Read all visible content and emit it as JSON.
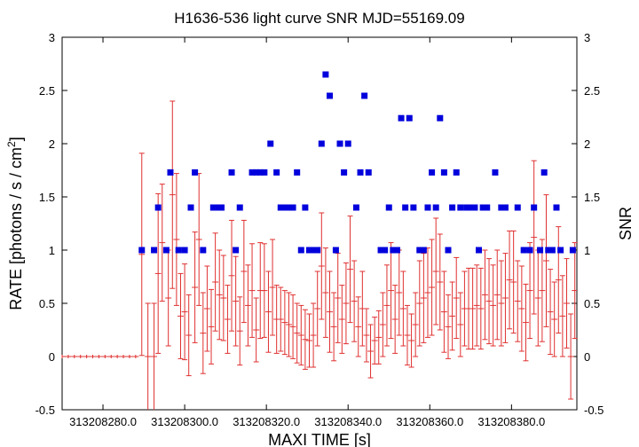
{
  "chart_data": {
    "type": "scatter",
    "title": "H1636-536 light curve  SNR MJD=55169.09",
    "xlabel": "MAXI TIME [s]",
    "ylabel_main": "RATE [photons / s / cm",
    "ylabel_sup": "2",
    "ylabel_close": "]",
    "y2label": "SNR",
    "xlim": [
      313208270.0,
      313208396.0
    ],
    "ylim": [
      -0.5,
      3.0
    ],
    "x_ticks": [
      313208280.0,
      313208300.0,
      313208320.0,
      313208340.0,
      313208360.0,
      313208380.0
    ],
    "x_tick_labels": [
      "313208280.0",
      "313208300.0",
      "313208320.0",
      "313208340.0",
      "313208360.0",
      "313208380.0"
    ],
    "y_ticks": [
      -0.5,
      0,
      0.5,
      1,
      1.5,
      2,
      2.5,
      3
    ],
    "y_tick_labels": [
      "-0.5",
      "0",
      "0.5",
      "1",
      "1.5",
      "2",
      "2.5",
      "3"
    ],
    "y2_tick_labels": [
      "-0.5",
      "0",
      "0.5",
      "1",
      "1.5",
      "2",
      "2.5",
      "3"
    ],
    "colors": {
      "rate": "#e03030",
      "snr": "#0000dd"
    },
    "series": [
      {
        "kind": "rate_with_errors",
        "points": [
          {
            "x": 313208270.0,
            "y": 0,
            "err": 0
          },
          {
            "x": 313208271.5,
            "y": 0,
            "err": 0
          },
          {
            "x": 313208273.0,
            "y": 0,
            "err": 0
          },
          {
            "x": 313208274.5,
            "y": 0,
            "err": 0
          },
          {
            "x": 313208276.0,
            "y": 0,
            "err": 0
          },
          {
            "x": 313208277.5,
            "y": 0,
            "err": 0
          },
          {
            "x": 313208279.0,
            "y": 0,
            "err": 0
          },
          {
            "x": 313208280.5,
            "y": 0,
            "err": 0
          },
          {
            "x": 313208282.0,
            "y": 0,
            "err": 0
          },
          {
            "x": 313208283.5,
            "y": 0,
            "err": 0
          },
          {
            "x": 313208285.0,
            "y": 0,
            "err": 0
          },
          {
            "x": 313208286.5,
            "y": 0,
            "err": 0
          },
          {
            "x": 313208288.0,
            "y": 0,
            "err": 0
          },
          {
            "x": 313208289.5,
            "y": 0.96,
            "err": 0.95
          },
          {
            "x": 313208291.0,
            "y": 0,
            "err": 0.5
          },
          {
            "x": 313208292.5,
            "y": 0,
            "err": 0.5
          },
          {
            "x": 313208293.5,
            "y": 0.78,
            "err": 0.75
          },
          {
            "x": 313208294.5,
            "y": 1.07,
            "err": 0.55
          },
          {
            "x": 313208296.0,
            "y": 0.55,
            "err": 0.45
          },
          {
            "x": 313208297.0,
            "y": 1.52,
            "err": 0.88
          },
          {
            "x": 313208298.0,
            "y": 1.1,
            "err": 0.62
          },
          {
            "x": 313208299.0,
            "y": 0.38,
            "err": 0.4
          },
          {
            "x": 313208300.0,
            "y": 0.42,
            "err": 0.45
          },
          {
            "x": 313208301.0,
            "y": 0.2,
            "err": 0.38
          },
          {
            "x": 313208302.5,
            "y": 0.65,
            "err": 0.52
          },
          {
            "x": 313208303.5,
            "y": 1.1,
            "err": 0.62
          },
          {
            "x": 313208304.5,
            "y": 0.22,
            "err": 0.38
          },
          {
            "x": 313208305.5,
            "y": 0.45,
            "err": 0.4
          },
          {
            "x": 313208306.5,
            "y": 0.28,
            "err": 0.35
          },
          {
            "x": 313208307.5,
            "y": 0.7,
            "err": 0.46
          },
          {
            "x": 313208308.5,
            "y": 0.58,
            "err": 0.42
          },
          {
            "x": 313208309.5,
            "y": 0.55,
            "err": 0.4
          },
          {
            "x": 313208310.5,
            "y": 0.35,
            "err": 0.32
          },
          {
            "x": 313208311.5,
            "y": 0.76,
            "err": 0.52
          },
          {
            "x": 313208312.5,
            "y": 0.52,
            "err": 0.42
          },
          {
            "x": 313208313.5,
            "y": 0.24,
            "err": 0.32
          },
          {
            "x": 313208314.5,
            "y": 0.8,
            "err": 0.48
          },
          {
            "x": 313208315.5,
            "y": 0.48,
            "err": 0.38
          },
          {
            "x": 313208316.5,
            "y": 0.62,
            "err": 0.44
          },
          {
            "x": 313208317.5,
            "y": 0.25,
            "err": 0.3
          },
          {
            "x": 313208318.5,
            "y": 0.62,
            "err": 0.45
          },
          {
            "x": 313208319.5,
            "y": 0.62,
            "err": 0.44
          },
          {
            "x": 313208320.5,
            "y": 0.42,
            "err": 0.38
          },
          {
            "x": 313208321.5,
            "y": 0.65,
            "err": 0.45
          },
          {
            "x": 313208322.5,
            "y": 0.35,
            "err": 0.32
          },
          {
            "x": 313208323.5,
            "y": 0.35,
            "err": 0.3
          },
          {
            "x": 313208324.5,
            "y": 0.32,
            "err": 0.3
          },
          {
            "x": 313208325.5,
            "y": 0.3,
            "err": 0.3
          },
          {
            "x": 313208326.5,
            "y": 0.28,
            "err": 0.3
          },
          {
            "x": 313208327.5,
            "y": 0.22,
            "err": 0.28
          },
          {
            "x": 313208328.5,
            "y": 0.2,
            "err": 0.28
          },
          {
            "x": 313208329.5,
            "y": 0.16,
            "err": 0.28
          },
          {
            "x": 313208330.5,
            "y": 0.15,
            "err": 0.25
          },
          {
            "x": 313208331.5,
            "y": 0.2,
            "err": 0.3
          },
          {
            "x": 313208332.5,
            "y": 0.45,
            "err": 0.35
          },
          {
            "x": 313208333.5,
            "y": 0.85,
            "err": 0.5
          },
          {
            "x": 313208334.5,
            "y": 0.6,
            "err": 0.42
          },
          {
            "x": 313208335.5,
            "y": 0.42,
            "err": 0.38
          },
          {
            "x": 313208336.5,
            "y": 0.28,
            "err": 0.32
          },
          {
            "x": 313208337.5,
            "y": 0.55,
            "err": 0.42
          },
          {
            "x": 313208338.5,
            "y": 0.35,
            "err": 0.32
          },
          {
            "x": 313208339.5,
            "y": 0.5,
            "err": 0.38
          },
          {
            "x": 313208340.5,
            "y": 0.82,
            "err": 0.5
          },
          {
            "x": 313208341.5,
            "y": 0.52,
            "err": 0.38
          },
          {
            "x": 313208342.5,
            "y": 0.28,
            "err": 0.28
          },
          {
            "x": 313208343.5,
            "y": 0.45,
            "err": 0.35
          },
          {
            "x": 313208344.5,
            "y": 0.2,
            "err": 0.25
          },
          {
            "x": 313208345.5,
            "y": 0.05,
            "err": 0.25
          },
          {
            "x": 313208346.5,
            "y": 0.15,
            "err": 0.22
          },
          {
            "x": 313208347.5,
            "y": 0.18,
            "err": 0.25
          },
          {
            "x": 313208348.5,
            "y": 0.3,
            "err": 0.3
          },
          {
            "x": 313208349.5,
            "y": 0.48,
            "err": 0.38
          },
          {
            "x": 313208350.5,
            "y": 0.62,
            "err": 0.45
          },
          {
            "x": 313208351.5,
            "y": 0.35,
            "err": 0.32
          },
          {
            "x": 313208352.5,
            "y": 0.6,
            "err": 0.4
          },
          {
            "x": 313208353.5,
            "y": 0.45,
            "err": 0.35
          },
          {
            "x": 313208354.5,
            "y": 0.2,
            "err": 0.28
          },
          {
            "x": 313208355.5,
            "y": 0.15,
            "err": 0.25
          },
          {
            "x": 313208356.5,
            "y": 0.3,
            "err": 0.3
          },
          {
            "x": 313208357.5,
            "y": 0.5,
            "err": 0.4
          },
          {
            "x": 313208358.5,
            "y": 0.55,
            "err": 0.42
          },
          {
            "x": 313208359.5,
            "y": 0.6,
            "err": 0.42
          },
          {
            "x": 313208360.5,
            "y": 0.65,
            "err": 0.45
          },
          {
            "x": 313208361.5,
            "y": 0.8,
            "err": 0.5
          },
          {
            "x": 313208362.5,
            "y": 0.7,
            "err": 0.45
          },
          {
            "x": 313208363.5,
            "y": 0.42,
            "err": 0.38
          },
          {
            "x": 313208364.5,
            "y": 0.28,
            "err": 0.3
          },
          {
            "x": 313208365.5,
            "y": 0.38,
            "err": 0.32
          },
          {
            "x": 313208366.5,
            "y": 0.55,
            "err": 0.38
          },
          {
            "x": 313208367.5,
            "y": 0.3,
            "err": 0.3
          },
          {
            "x": 313208368.5,
            "y": 0.45,
            "err": 0.35
          },
          {
            "x": 313208369.5,
            "y": 0.45,
            "err": 0.38
          },
          {
            "x": 313208370.5,
            "y": 0.45,
            "err": 0.38
          },
          {
            "x": 313208371.5,
            "y": 0.48,
            "err": 0.38
          },
          {
            "x": 313208372.5,
            "y": 0.45,
            "err": 0.38
          },
          {
            "x": 313208373.5,
            "y": 0.58,
            "err": 0.42
          },
          {
            "x": 313208374.5,
            "y": 0.52,
            "err": 0.4
          },
          {
            "x": 313208375.5,
            "y": 0.48,
            "err": 0.38
          },
          {
            "x": 313208376.5,
            "y": 0.58,
            "err": 0.42
          },
          {
            "x": 313208377.5,
            "y": 0.5,
            "err": 0.4
          },
          {
            "x": 313208378.5,
            "y": 0.55,
            "err": 0.42
          },
          {
            "x": 313208379.5,
            "y": 0.72,
            "err": 0.46
          },
          {
            "x": 313208380.5,
            "y": 0.7,
            "err": 0.48
          },
          {
            "x": 313208381.5,
            "y": 0.52,
            "err": 0.38
          },
          {
            "x": 313208382.5,
            "y": 0.45,
            "err": 0.4
          },
          {
            "x": 313208383.5,
            "y": 0.32,
            "err": 0.36
          },
          {
            "x": 313208384.5,
            "y": 0.62,
            "err": 0.45
          },
          {
            "x": 313208385.5,
            "y": 1.12,
            "err": 0.72
          },
          {
            "x": 313208386.5,
            "y": 0.55,
            "err": 0.45
          },
          {
            "x": 313208387.5,
            "y": 0.62,
            "err": 0.48
          },
          {
            "x": 313208388.5,
            "y": 0.9,
            "err": 0.62
          },
          {
            "x": 313208389.5,
            "y": 0.42,
            "err": 0.4
          },
          {
            "x": 313208390.5,
            "y": 0.35,
            "err": 0.35
          },
          {
            "x": 313208391.5,
            "y": 0.72,
            "err": 0.5
          },
          {
            "x": 313208392.5,
            "y": 0.38,
            "err": 0.38
          },
          {
            "x": 313208393.5,
            "y": 0.5,
            "err": 0.42
          },
          {
            "x": 313208394.5,
            "y": 0,
            "err": 0.4
          },
          {
            "x": 313208395.5,
            "y": 0.62,
            "err": 0.45
          }
        ]
      },
      {
        "kind": "snr",
        "points": [
          {
            "x": 313208289.5,
            "y": 1
          },
          {
            "x": 313208292.5,
            "y": 1
          },
          {
            "x": 313208293.5,
            "y": 1.4
          },
          {
            "x": 313208295.5,
            "y": 1
          },
          {
            "x": 313208296.5,
            "y": 1.73
          },
          {
            "x": 313208298.5,
            "y": 1
          },
          {
            "x": 313208300.0,
            "y": 1
          },
          {
            "x": 313208301.5,
            "y": 1.4
          },
          {
            "x": 313208302.5,
            "y": 1.73
          },
          {
            "x": 313208304.5,
            "y": 1
          },
          {
            "x": 313208307.0,
            "y": 1.4
          },
          {
            "x": 313208308.0,
            "y": 1.4
          },
          {
            "x": 313208309.0,
            "y": 1.4
          },
          {
            "x": 313208311.5,
            "y": 1.73
          },
          {
            "x": 313208312.5,
            "y": 1
          },
          {
            "x": 313208313.5,
            "y": 1.4
          },
          {
            "x": 313208316.5,
            "y": 1.73
          },
          {
            "x": 313208317.5,
            "y": 1.73
          },
          {
            "x": 313208318.5,
            "y": 1.73
          },
          {
            "x": 313208319.5,
            "y": 1.73
          },
          {
            "x": 313208321.0,
            "y": 2
          },
          {
            "x": 313208322.5,
            "y": 1.73
          },
          {
            "x": 313208323.5,
            "y": 1.4
          },
          {
            "x": 313208324.5,
            "y": 1.4
          },
          {
            "x": 313208325.5,
            "y": 1.4
          },
          {
            "x": 313208326.5,
            "y": 1.4
          },
          {
            "x": 313208327.5,
            "y": 1.73
          },
          {
            "x": 313208328.5,
            "y": 1
          },
          {
            "x": 313208329.5,
            "y": 1.4
          },
          {
            "x": 313208330.5,
            "y": 1
          },
          {
            "x": 313208331.5,
            "y": 1
          },
          {
            "x": 313208332.5,
            "y": 1
          },
          {
            "x": 313208333.5,
            "y": 2
          },
          {
            "x": 313208334.5,
            "y": 2.65
          },
          {
            "x": 313208335.5,
            "y": 2.45
          },
          {
            "x": 313208337.0,
            "y": 1
          },
          {
            "x": 313208338.0,
            "y": 2
          },
          {
            "x": 313208339.0,
            "y": 1.73
          },
          {
            "x": 313208340.0,
            "y": 2
          },
          {
            "x": 313208342.0,
            "y": 1.4
          },
          {
            "x": 313208343.0,
            "y": 1.73
          },
          {
            "x": 313208344.0,
            "y": 2.45
          },
          {
            "x": 313208345.0,
            "y": 1.73
          },
          {
            "x": 313208348.0,
            "y": 1
          },
          {
            "x": 313208349.0,
            "y": 1
          },
          {
            "x": 313208350.0,
            "y": 1.4
          },
          {
            "x": 313208351.0,
            "y": 1
          },
          {
            "x": 313208352.0,
            "y": 1
          },
          {
            "x": 313208353.0,
            "y": 2.24
          },
          {
            "x": 313208354.0,
            "y": 1.4
          },
          {
            "x": 313208355.0,
            "y": 2.24
          },
          {
            "x": 313208356.0,
            "y": 1.4
          },
          {
            "x": 313208357.5,
            "y": 1
          },
          {
            "x": 313208358.5,
            "y": 1
          },
          {
            "x": 313208359.5,
            "y": 1.4
          },
          {
            "x": 313208360.5,
            "y": 1.73
          },
          {
            "x": 313208361.5,
            "y": 1.4
          },
          {
            "x": 313208362.5,
            "y": 2.24
          },
          {
            "x": 313208363.5,
            "y": 1.73
          },
          {
            "x": 313208364.5,
            "y": 1
          },
          {
            "x": 313208365.5,
            "y": 1.4
          },
          {
            "x": 313208366.5,
            "y": 1.73
          },
          {
            "x": 313208367.5,
            "y": 1.4
          },
          {
            "x": 313208369.0,
            "y": 1.4
          },
          {
            "x": 313208370.0,
            "y": 1.4
          },
          {
            "x": 313208371.0,
            "y": 1.4
          },
          {
            "x": 313208372.0,
            "y": 1
          },
          {
            "x": 313208373.0,
            "y": 1.4
          },
          {
            "x": 313208374.0,
            "y": 1.4
          },
          {
            "x": 313208376.0,
            "y": 1.73
          },
          {
            "x": 313208377.5,
            "y": 1.4
          },
          {
            "x": 313208378.5,
            "y": 1.4
          },
          {
            "x": 313208381.5,
            "y": 1.4
          },
          {
            "x": 313208383.0,
            "y": 1
          },
          {
            "x": 313208384.5,
            "y": 1
          },
          {
            "x": 313208385.5,
            "y": 1.4
          },
          {
            "x": 313208387.0,
            "y": 1
          },
          {
            "x": 313208388.0,
            "y": 1.73
          },
          {
            "x": 313208389.0,
            "y": 1
          },
          {
            "x": 313208390.0,
            "y": 1
          },
          {
            "x": 313208391.0,
            "y": 1.4
          },
          {
            "x": 313208392.0,
            "y": 1
          },
          {
            "x": 313208395.0,
            "y": 1
          }
        ]
      }
    ]
  }
}
